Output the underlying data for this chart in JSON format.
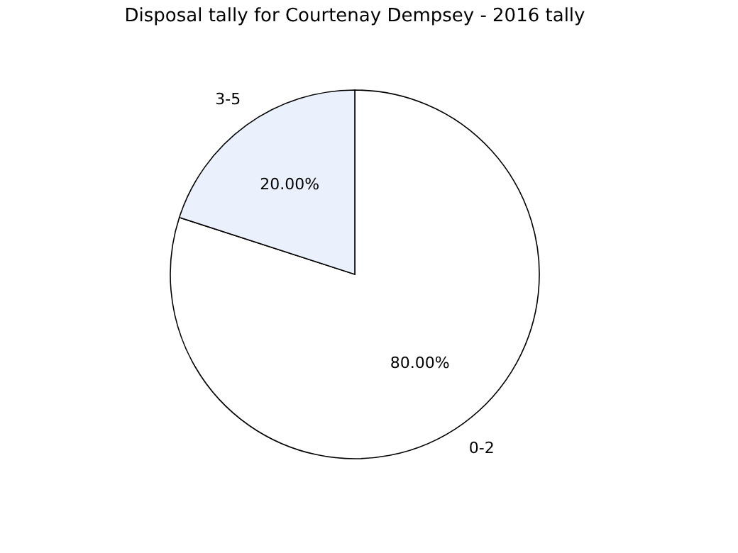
{
  "chart_data": {
    "type": "pie",
    "title": "Disposal tally for Courtenay Dempsey - 2016 tally",
    "categories": [
      "0-2",
      "3-5"
    ],
    "values": [
      80,
      20
    ],
    "colors": [
      "#ffffff",
      "#eaf0fc"
    ],
    "value_labels": [
      "80.00%",
      "20.00%"
    ],
    "legend": false
  }
}
